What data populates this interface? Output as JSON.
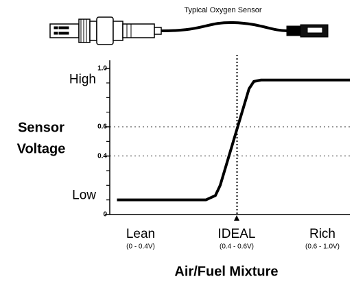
{
  "chart_data": {
    "type": "line",
    "image_caption": "Typical Oxygen Sensor",
    "y_label": [
      "Sensor",
      "Voltage"
    ],
    "x_label": "Air/Fuel Mixture",
    "level_labels": [
      {
        "value": 0.92,
        "label": "High"
      },
      {
        "value": 0.13,
        "label": "Low"
      }
    ],
    "ylim": [
      0,
      1.05
    ],
    "yticks": [
      {
        "value": 0,
        "label": "0"
      },
      0.4,
      0.6,
      {
        "value": 1,
        "label": "1.0"
      }
    ],
    "minor_yticks": [
      0.1,
      0.2,
      0.3,
      0.5,
      0.7,
      0.8,
      0.9
    ],
    "hlines": [
      0.6,
      0.4
    ],
    "xlim": [
      0,
      100
    ],
    "vlines": [
      53
    ],
    "x_labels": [
      {
        "label": "Lean",
        "range": "(0 - 0.4V)"
      },
      {
        "label": "IDEAL",
        "range": "(0.4 - 0.6V)"
      },
      {
        "label": "Rich",
        "range": "(0.6 - 1.0V)"
      }
    ],
    "x": [
      3,
      40,
      44,
      46,
      58,
      60,
      63,
      100
    ],
    "series": [
      {
        "color": "#000000",
        "values": [
          0.1,
          0.1,
          0.13,
          0.2,
          0.86,
          0.91,
          0.92,
          0.92
        ]
      }
    ]
  }
}
